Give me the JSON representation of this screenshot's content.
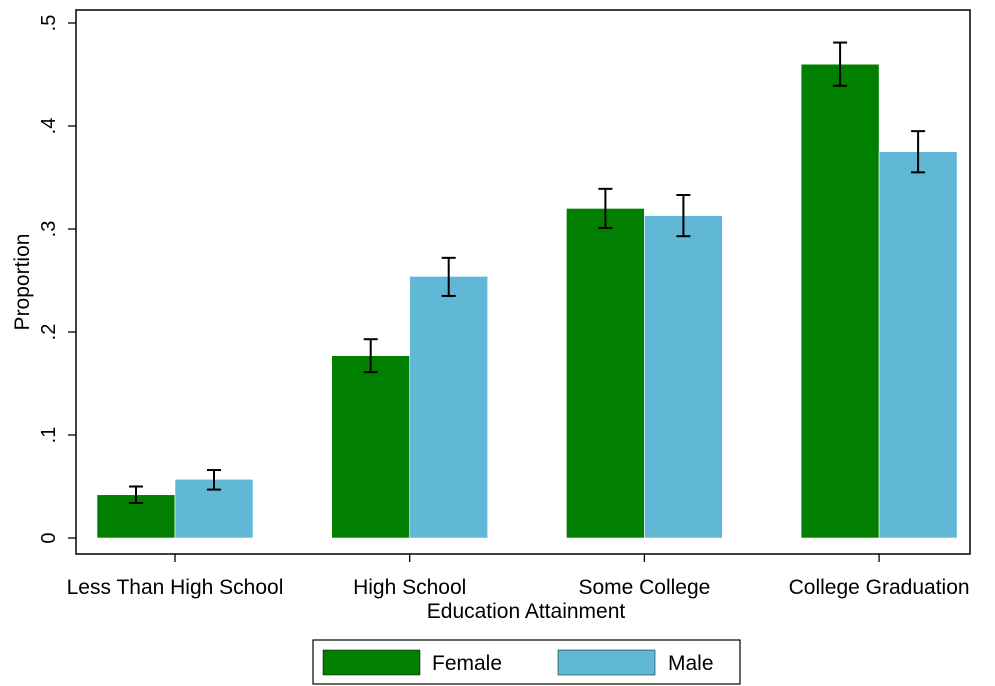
{
  "chart_data": {
    "type": "bar",
    "title": "",
    "xlabel": "Education Attainment",
    "ylabel": "Proportion",
    "ylim": [
      0,
      0.5
    ],
    "yticks": [
      0,
      0.1,
      0.2,
      0.3,
      0.4,
      0.5
    ],
    "ytick_labels": [
      "0",
      ".1",
      ".2",
      ".3",
      ".4",
      ".5"
    ],
    "grid": false,
    "legend_position": "bottom",
    "categories": [
      "Less Than High School",
      "High School",
      "Some College",
      "College Graduation"
    ],
    "series": [
      {
        "name": "Female",
        "color": "#007f00",
        "values": [
          0.042,
          0.177,
          0.32,
          0.46
        ],
        "ci_low": [
          0.034,
          0.161,
          0.301,
          0.439
        ],
        "ci_high": [
          0.05,
          0.193,
          0.339,
          0.481
        ]
      },
      {
        "name": "Male",
        "color": "#60b7d6",
        "values": [
          0.057,
          0.254,
          0.313,
          0.375
        ],
        "ci_low": [
          0.047,
          0.235,
          0.293,
          0.355
        ],
        "ci_high": [
          0.066,
          0.272,
          0.333,
          0.395
        ]
      }
    ]
  }
}
